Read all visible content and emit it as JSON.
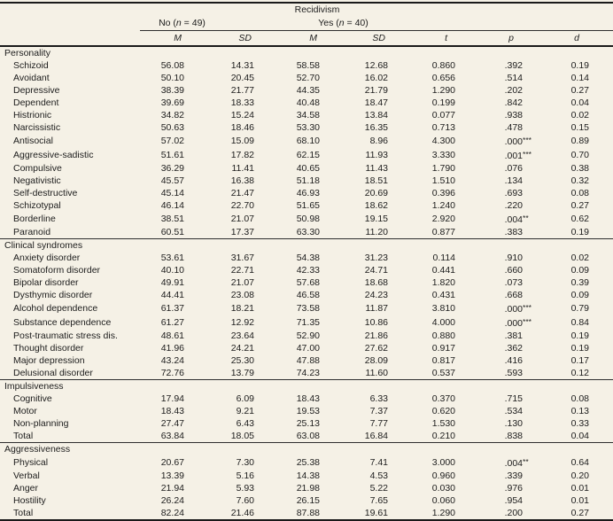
{
  "colors": {
    "background": "#f5f1e6",
    "thick_rule": "#1a1a1a",
    "thin_rule": "#2e2e2e",
    "text": "#1c1c1c"
  },
  "header": {
    "title": "Recidivism",
    "group_no": {
      "prefix": "No (",
      "n": "n",
      "suffix": " = 49)"
    },
    "group_yes": {
      "prefix": "Yes (",
      "n": "n",
      "suffix": " = 40)"
    },
    "columns": [
      "M",
      "SD",
      "M",
      "SD",
      "t",
      "p",
      "d"
    ]
  },
  "table": {
    "sections": [
      {
        "title": "Personality",
        "rows": [
          {
            "label": "Schizoid",
            "cells": [
              "56.08",
              "14.31",
              "58.58",
              "12.68",
              "0.860",
              ".392",
              "0.19"
            ],
            "p_star": ""
          },
          {
            "label": "Avoidant",
            "cells": [
              "50.10",
              "20.45",
              "52.70",
              "16.02",
              "0.656",
              ".514",
              "0.14"
            ],
            "p_star": ""
          },
          {
            "label": "Depressive",
            "cells": [
              "38.39",
              "21.77",
              "44.35",
              "21.79",
              "1.290",
              ".202",
              "0.27"
            ],
            "p_star": ""
          },
          {
            "label": "Dependent",
            "cells": [
              "39.69",
              "18.33",
              "40.48",
              "18.47",
              "0.199",
              ".842",
              "0.04"
            ],
            "p_star": ""
          },
          {
            "label": "Histrionic",
            "cells": [
              "34.82",
              "15.24",
              "34.58",
              "13.84",
              "0.077",
              ".938",
              "0.02"
            ],
            "p_star": ""
          },
          {
            "label": "Narcissistic",
            "cells": [
              "50.63",
              "18.46",
              "53.30",
              "16.35",
              "0.713",
              ".478",
              "0.15"
            ],
            "p_star": ""
          },
          {
            "label": "Antisocial",
            "cells": [
              "57.02",
              "15.09",
              "68.10",
              "8.96",
              "4.300",
              ".000",
              "0.89"
            ],
            "p_star": "***"
          },
          {
            "label": "Aggressive-sadistic",
            "cells": [
              "51.61",
              "17.82",
              "62.15",
              "11.93",
              "3.330",
              ".001",
              "0.70"
            ],
            "p_star": "***"
          },
          {
            "label": "Compulsive",
            "cells": [
              "36.29",
              "11.41",
              "40.65",
              "11.43",
              "1.790",
              ".076",
              "0.38"
            ],
            "p_star": ""
          },
          {
            "label": "Negativistic",
            "cells": [
              "45.57",
              "16.38",
              "51.18",
              "18.51",
              "1.510",
              ".134",
              "0.32"
            ],
            "p_star": ""
          },
          {
            "label": "Self-destructive",
            "cells": [
              "45.14",
              "21.47",
              "46.93",
              "20.69",
              "0.396",
              ".693",
              "0.08"
            ],
            "p_star": ""
          },
          {
            "label": "Schizotypal",
            "cells": [
              "46.14",
              "22.70",
              "51.65",
              "18.62",
              "1.240",
              ".220",
              "0.27"
            ],
            "p_star": ""
          },
          {
            "label": "Borderline",
            "cells": [
              "38.51",
              "21.07",
              "50.98",
              "19.15",
              "2.920",
              ".004",
              "0.62"
            ],
            "p_star": "**"
          },
          {
            "label": "Paranoid",
            "cells": [
              "60.51",
              "17.37",
              "63.30",
              "11.20",
              "0.877",
              ".383",
              "0.19"
            ],
            "p_star": ""
          }
        ]
      },
      {
        "title": "Clinical syndromes",
        "rows": [
          {
            "label": "Anxiety disorder",
            "cells": [
              "53.61",
              "31.67",
              "54.38",
              "31.23",
              "0.114",
              ".910",
              "0.02"
            ],
            "p_star": ""
          },
          {
            "label": "Somatoform disorder",
            "cells": [
              "40.10",
              "22.71",
              "42.33",
              "24.71",
              "0.441",
              ".660",
              "0.09"
            ],
            "p_star": ""
          },
          {
            "label": "Bipolar disorder",
            "cells": [
              "49.91",
              "21.07",
              "57.68",
              "18.68",
              "1.820",
              ".073",
              "0.39"
            ],
            "p_star": ""
          },
          {
            "label": "Dysthymic disorder",
            "cells": [
              "44.41",
              "23.08",
              "46.58",
              "24.23",
              "0.431",
              ".668",
              "0.09"
            ],
            "p_star": ""
          },
          {
            "label": "Alcohol dependence",
            "cells": [
              "61.37",
              "18.21",
              "73.58",
              "11.87",
              "3.810",
              ".000",
              "0.79"
            ],
            "p_star": "***"
          },
          {
            "label": "Substance dependence",
            "cells": [
              "61.27",
              "12.92",
              "71.35",
              "10.86",
              "4.000",
              ".000",
              "0.84"
            ],
            "p_star": "***"
          },
          {
            "label": "Post-traumatic stress dis.",
            "cells": [
              "48.61",
              "23.64",
              "52.90",
              "21.86",
              "0.880",
              ".381",
              "0.19"
            ],
            "p_star": ""
          },
          {
            "label": "Thought disorder",
            "cells": [
              "41.96",
              "24.21",
              "47.00",
              "27.62",
              "0.917",
              ".362",
              "0.19"
            ],
            "p_star": ""
          },
          {
            "label": "Major depression",
            "cells": [
              "43.24",
              "25.30",
              "47.88",
              "28.09",
              "0.817",
              ".416",
              "0.17"
            ],
            "p_star": ""
          },
          {
            "label": "Delusional disorder",
            "cells": [
              "72.76",
              "13.79",
              "74.23",
              "11.60",
              "0.537",
              ".593",
              "0.12"
            ],
            "p_star": ""
          }
        ]
      },
      {
        "title": "Impulsiveness",
        "rows": [
          {
            "label": "Cognitive",
            "cells": [
              "17.94",
              "6.09",
              "18.43",
              "6.33",
              "0.370",
              ".715",
              "0.08"
            ],
            "p_star": ""
          },
          {
            "label": "Motor",
            "cells": [
              "18.43",
              "9.21",
              "19.53",
              "7.37",
              "0.620",
              ".534",
              "0.13"
            ],
            "p_star": ""
          },
          {
            "label": "Non-planning",
            "cells": [
              "27.47",
              "6.43",
              "25.13",
              "7.77",
              "1.530",
              ".130",
              "0.33"
            ],
            "p_star": ""
          },
          {
            "label": "Total",
            "cells": [
              "63.84",
              "18.05",
              "63.08",
              "16.84",
              "0.210",
              ".838",
              "0.04"
            ],
            "p_star": ""
          }
        ]
      },
      {
        "title": "Aggressiveness",
        "rows": [
          {
            "label": "Physical",
            "cells": [
              "20.67",
              "7.30",
              "25.38",
              "7.41",
              "3.000",
              ".004",
              "0.64"
            ],
            "p_star": "**"
          },
          {
            "label": "Verbal",
            "cells": [
              "13.39",
              "5.16",
              "14.38",
              "4.53",
              "0.960",
              ".339",
              "0.20"
            ],
            "p_star": ""
          },
          {
            "label": "Anger",
            "cells": [
              "21.94",
              "5.93",
              "21.98",
              "5.22",
              "0.030",
              ".976",
              "0.01"
            ],
            "p_star": ""
          },
          {
            "label": "Hostility",
            "cells": [
              "26.24",
              "7.60",
              "26.15",
              "7.65",
              "0.060",
              ".954",
              "0.01"
            ],
            "p_star": ""
          },
          {
            "label": "Total",
            "cells": [
              "82.24",
              "21.46",
              "87.88",
              "19.61",
              "1.290",
              ".200",
              "0.27"
            ],
            "p_star": ""
          }
        ]
      }
    ]
  }
}
